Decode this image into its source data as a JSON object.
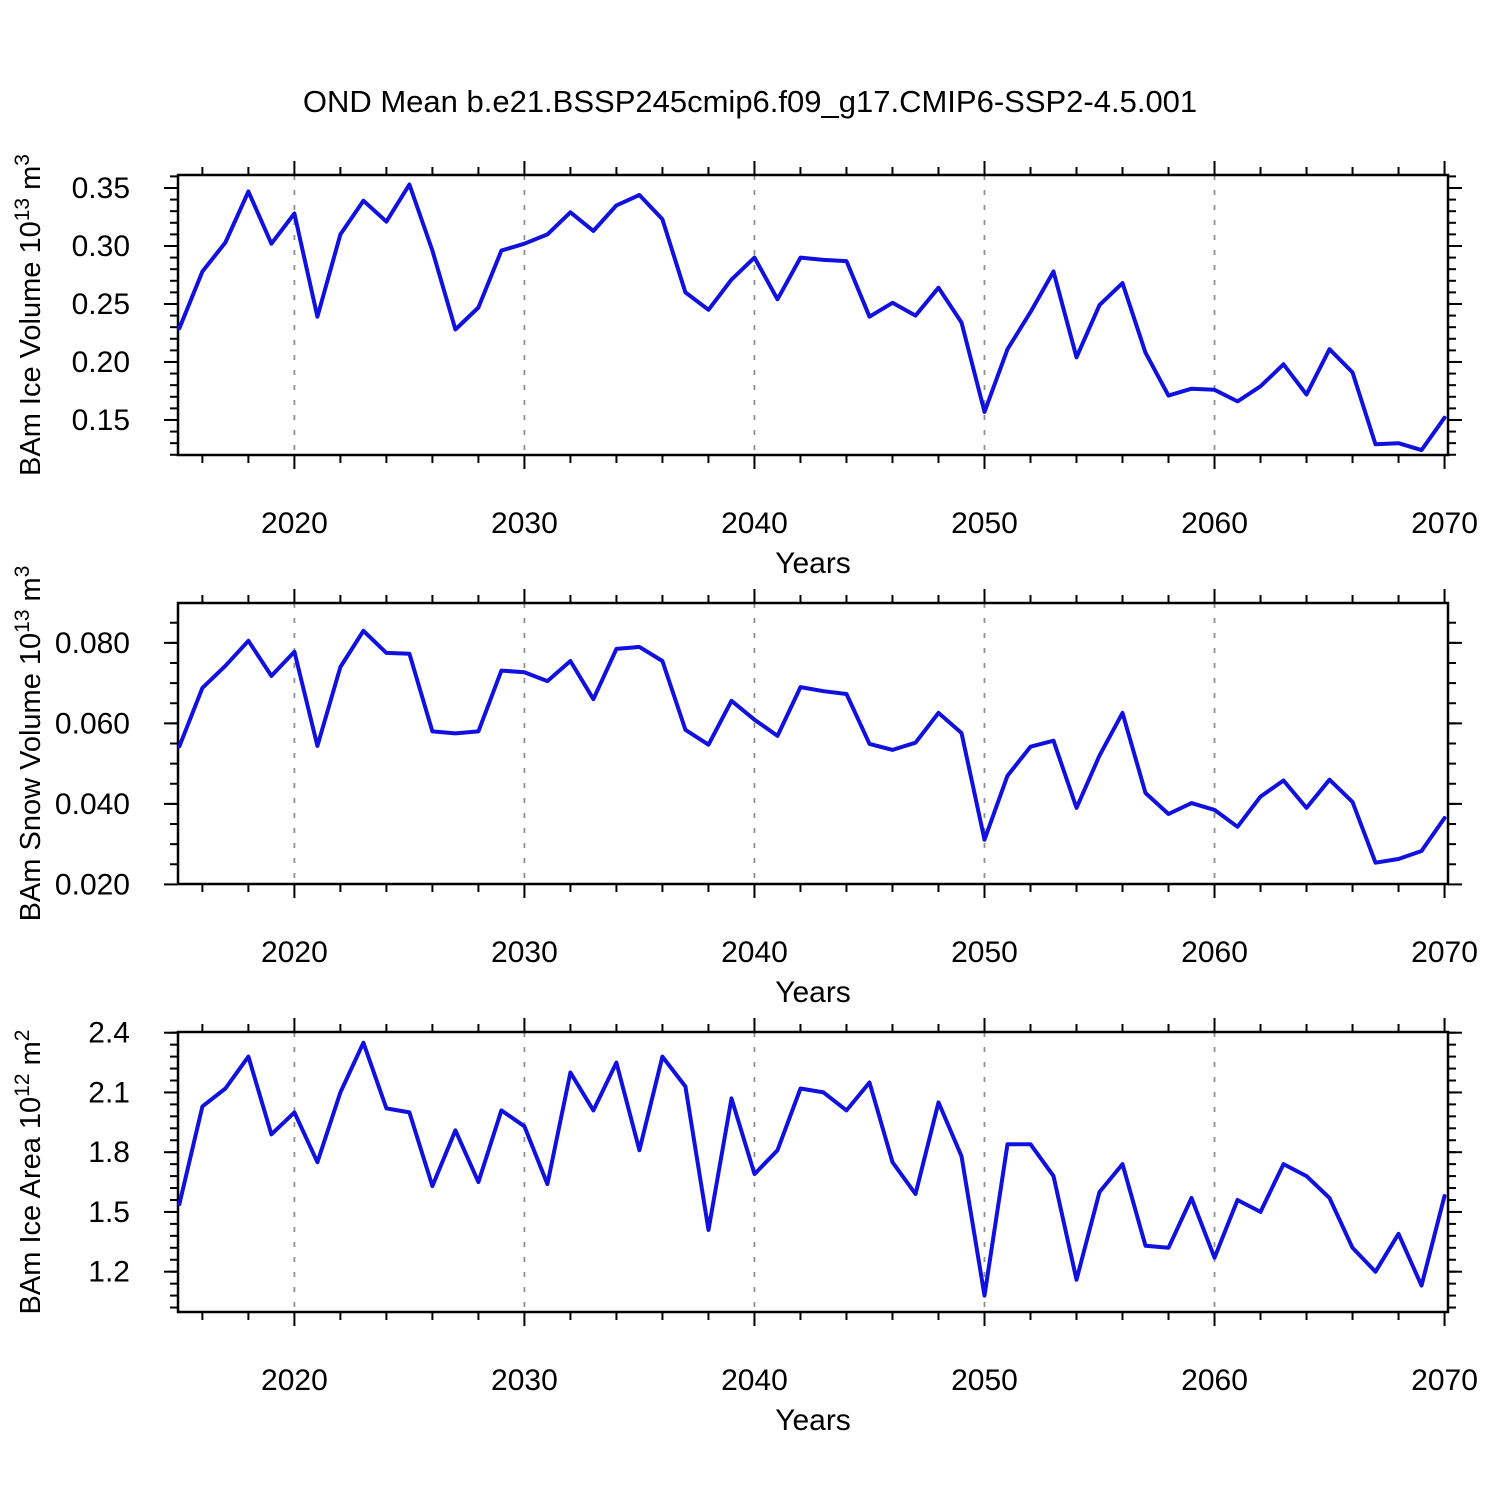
{
  "title": "OND Mean b.e21.BSSP245cmip6.f09_g17.CMIP6-SSP2-4.5.001",
  "xlabel": "Years",
  "line_color": "#1010e0",
  "grid_color": "#909090",
  "axis_color": "#000000",
  "years": [
    2015,
    2016,
    2017,
    2018,
    2019,
    2020,
    2021,
    2022,
    2023,
    2024,
    2025,
    2026,
    2027,
    2028,
    2029,
    2030,
    2031,
    2032,
    2033,
    2034,
    2035,
    2036,
    2037,
    2038,
    2039,
    2040,
    2041,
    2042,
    2043,
    2044,
    2045,
    2046,
    2047,
    2048,
    2049,
    2050,
    2051,
    2052,
    2053,
    2054,
    2055,
    2056,
    2057,
    2058,
    2059,
    2060,
    2061,
    2062,
    2063,
    2064,
    2065,
    2066,
    2067,
    2068,
    2069,
    2070
  ],
  "xticks": [
    2020,
    2030,
    2040,
    2050,
    2060,
    2070
  ],
  "grid_years": [
    2020,
    2030,
    2040,
    2050,
    2060
  ],
  "x_minor_step": 2,
  "xlim": [
    2014.94,
    2070.15
  ],
  "chart_data": [
    {
      "type": "line",
      "ylabel": "BAm Ice Volume 10^13 m^3",
      "ylabel_parts": [
        {
          "text": "BAm Ice Volume 10",
          "sup": false
        },
        {
          "text": "13",
          "sup": true
        },
        {
          "text": " m",
          "sup": false
        },
        {
          "text": "3",
          "sup": true
        }
      ],
      "ytick_values": [
        0.35,
        0.3,
        0.25,
        0.2,
        0.15
      ],
      "ytick_labels": [
        "0.35",
        "0.30",
        "0.25",
        "0.20",
        "0.15"
      ],
      "y_minor_step": 0.01,
      "ylim": [
        0.1198,
        0.3612
      ],
      "values": [
        0.229,
        0.278,
        0.303,
        0.347,
        0.302,
        0.328,
        0.239,
        0.31,
        0.339,
        0.321,
        0.353,
        0.296,
        0.228,
        0.247,
        0.296,
        0.302,
        0.31,
        0.329,
        0.313,
        0.335,
        0.344,
        0.323,
        0.26,
        0.245,
        0.271,
        0.29,
        0.254,
        0.29,
        0.288,
        0.287,
        0.239,
        0.251,
        0.24,
        0.264,
        0.234,
        0.157,
        0.211,
        0.243,
        0.278,
        0.204,
        0.249,
        0.268,
        0.208,
        0.171,
        0.177,
        0.176,
        0.166,
        0.179,
        0.198,
        0.172,
        0.211,
        0.191,
        0.129,
        0.13,
        0.124,
        0.152
      ]
    },
    {
      "type": "line",
      "ylabel": "BAm Snow Volume 10^13 m^3",
      "ylabel_parts": [
        {
          "text": "BAm Snow Volume 10",
          "sup": false
        },
        {
          "text": "13",
          "sup": true
        },
        {
          "text": " m",
          "sup": false
        },
        {
          "text": "3",
          "sup": true
        }
      ],
      "ytick_values": [
        0.08,
        0.06,
        0.04,
        0.02
      ],
      "ytick_labels": [
        "0.080",
        "0.060",
        "0.040",
        "0.020"
      ],
      "y_minor_step": 0.005,
      "ylim": [
        0.0201,
        0.0899
      ],
      "values": [
        0.0543,
        0.0688,
        0.0743,
        0.0805,
        0.0718,
        0.0778,
        0.0544,
        0.074,
        0.083,
        0.0775,
        0.0773,
        0.058,
        0.0575,
        0.058,
        0.0731,
        0.0727,
        0.0705,
        0.0755,
        0.066,
        0.0785,
        0.079,
        0.0755,
        0.0584,
        0.0547,
        0.0656,
        0.0609,
        0.0569,
        0.069,
        0.068,
        0.0673,
        0.0549,
        0.0534,
        0.0552,
        0.0626,
        0.0576,
        0.0311,
        0.047,
        0.0542,
        0.0557,
        0.039,
        0.052,
        0.0626,
        0.0427,
        0.0375,
        0.0402,
        0.0385,
        0.0343,
        0.0418,
        0.0458,
        0.039,
        0.046,
        0.0405,
        0.0254,
        0.0263,
        0.0283,
        0.0365
      ]
    },
    {
      "type": "line",
      "ylabel": "BAm Ice Area 10^12 m^2",
      "ylabel_parts": [
        {
          "text": "BAm Ice Area 10",
          "sup": false
        },
        {
          "text": "12",
          "sup": true
        },
        {
          "text": " m",
          "sup": false
        },
        {
          "text": "2",
          "sup": true
        }
      ],
      "ytick_values": [
        2.4,
        2.1,
        1.8,
        1.5,
        1.2
      ],
      "ytick_labels": [
        "2.4",
        "2.1",
        "1.8",
        "1.5",
        "1.2"
      ],
      "y_minor_step": 0.06,
      "ylim": [
        0.9976,
        2.4035
      ],
      "values": [
        1.54,
        2.03,
        2.12,
        2.28,
        1.89,
        2.0,
        1.75,
        2.1,
        2.35,
        2.02,
        2.0,
        1.63,
        1.91,
        1.65,
        2.01,
        1.93,
        1.64,
        2.2,
        2.01,
        2.25,
        1.81,
        2.28,
        2.13,
        1.41,
        2.07,
        1.69,
        1.81,
        2.12,
        2.1,
        2.01,
        2.15,
        1.75,
        1.59,
        2.05,
        1.78,
        1.08,
        1.84,
        1.84,
        1.68,
        1.16,
        1.6,
        1.74,
        1.33,
        1.32,
        1.57,
        1.27,
        1.56,
        1.5,
        1.74,
        1.68,
        1.57,
        1.32,
        1.2,
        1.39,
        1.13,
        1.58
      ]
    }
  ]
}
